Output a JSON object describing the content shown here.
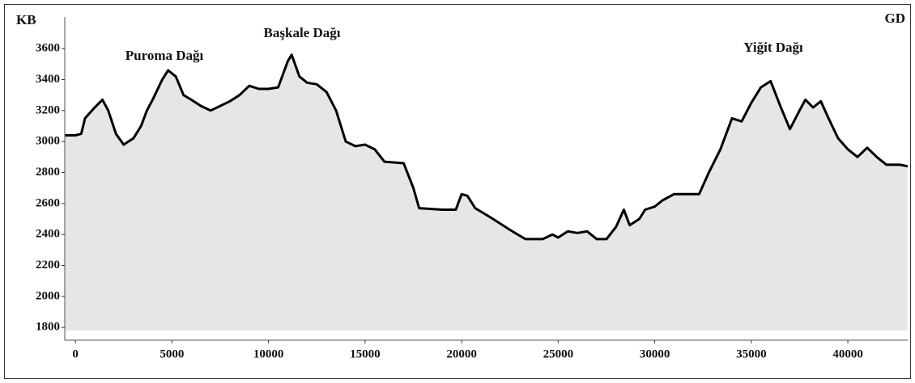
{
  "chart_data": {
    "type": "area",
    "annotations": [
      "KB",
      "GD",
      "Puroma Dağı",
      "Başkale Dağı",
      "Yiğit Dağı"
    ],
    "x": [
      -550,
      0,
      300,
      500,
      1000,
      1400,
      1700,
      2100,
      2500,
      3000,
      3400,
      3700,
      4000,
      4500,
      4800,
      5200,
      5600,
      6000,
      6500,
      7000,
      7500,
      8000,
      8500,
      9000,
      9500,
      10000,
      10500,
      11000,
      11200,
      11600,
      12000,
      12500,
      13000,
      13500,
      14000,
      14500,
      15000,
      15500,
      16000,
      17000,
      17500,
      17800,
      19000,
      19700,
      20000,
      20300,
      20700,
      21500,
      22500,
      23300,
      24200,
      24700,
      25000,
      25500,
      26000,
      26500,
      27000,
      27500,
      28000,
      28400,
      28700,
      29200,
      29500,
      30000,
      30400,
      31000,
      32300,
      32800,
      33400,
      34000,
      34500,
      35000,
      35500,
      36000,
      36500,
      37000,
      37500,
      37800,
      38200,
      38600,
      39000,
      39500,
      40000,
      40500,
      41000,
      41500,
      42000,
      42700,
      43100
    ],
    "values": [
      3040,
      3040,
      3050,
      3150,
      3220,
      3270,
      3200,
      3050,
      2980,
      3020,
      3100,
      3200,
      3270,
      3400,
      3460,
      3420,
      3300,
      3270,
      3230,
      3200,
      3230,
      3260,
      3300,
      3360,
      3340,
      3340,
      3350,
      3520,
      3560,
      3420,
      3380,
      3370,
      3320,
      3200,
      3000,
      2970,
      2980,
      2950,
      2870,
      2860,
      2700,
      2570,
      2560,
      2560,
      2660,
      2650,
      2570,
      2510,
      2430,
      2370,
      2370,
      2400,
      2380,
      2420,
      2410,
      2420,
      2370,
      2370,
      2450,
      2560,
      2460,
      2500,
      2560,
      2580,
      2620,
      2660,
      2660,
      2800,
      2950,
      3150,
      3130,
      3250,
      3350,
      3390,
      3230,
      3080,
      3200,
      3270,
      3220,
      3260,
      3150,
      3020,
      2950,
      2900,
      2960,
      2900,
      2850,
      2850,
      2840
    ],
    "color": "#e6e6e6",
    "line_color": "#000000",
    "xlim": [
      -550,
      43100
    ],
    "ylim": [
      1780,
      3700
    ],
    "xticks": [
      0,
      5000,
      10000,
      15000,
      20000,
      25000,
      30000,
      35000,
      40000
    ],
    "yticks": [
      1800,
      2000,
      2200,
      2400,
      2600,
      2800,
      3000,
      3200,
      3400,
      3600
    ]
  }
}
